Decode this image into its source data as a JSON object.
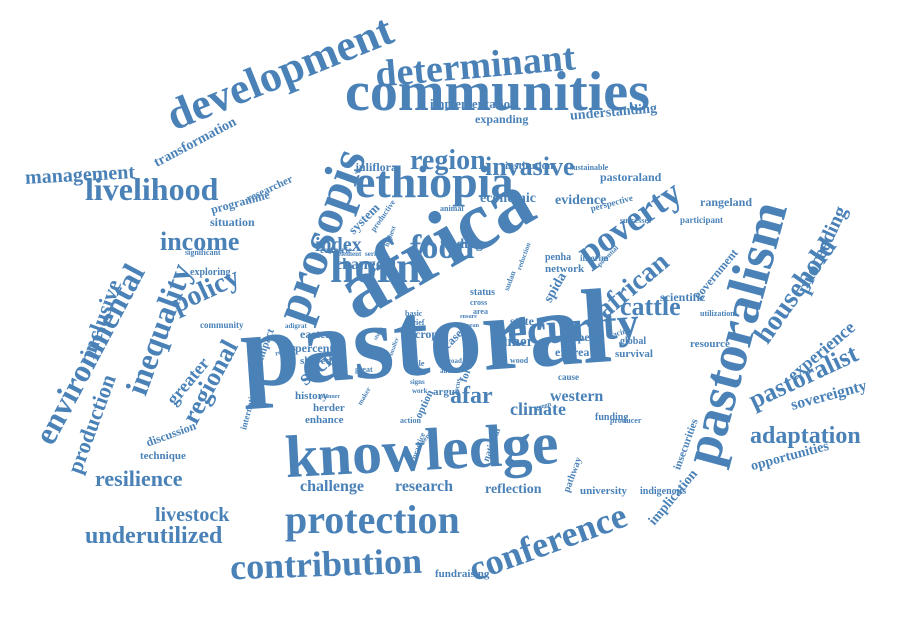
{
  "words": {
    "pastoral": "pastoral",
    "africa": "africa",
    "knowledge": "knowledge",
    "communities": "communities",
    "prosopis": "prosopis",
    "pastoralism": "pastoralism",
    "security": "security",
    "ethiopia": "ethiopia",
    "development": "development",
    "protection": "protection",
    "contribution": "contribution",
    "horn": "horn",
    "determinant": "determinant",
    "conference": "conference",
    "poverty": "poverty",
    "food": "food",
    "environmental": "environmental",
    "livelihood": "livelihood",
    "inequality": "inequality",
    "region": "region",
    "invasive": "invasive",
    "income": "income",
    "policy": "policy",
    "household": "household",
    "regional": "regional",
    "underutilized": "underutilized",
    "pastoralist": "pastoralist",
    "african": "african",
    "cattle": "cattle",
    "adaptation": "adaptation",
    "resilience": "resilience",
    "management": "management",
    "livestock": "livestock",
    "inclusive": "inclusive",
    "production": "production",
    "afar": "afar",
    "proceeding": "proceeding",
    "social": "social",
    "index": "index",
    "change": "change",
    "climate": "climate",
    "experience": "experience",
    "greater": "greater",
    "challenge": "challenge",
    "research": "research",
    "reflection": "reflection",
    "western": "western",
    "economic": "economic",
    "evidence": "evidence",
    "finding": "finding",
    "sovereignty": "sovereignty",
    "opportunities": "opportunities",
    "implication": "implication",
    "implementation": "implementation",
    "understanding": "understanding",
    "transformation": "transformation",
    "expanding": "expanding",
    "juliflora": "juliflora",
    "institution": "institution",
    "pastoraland": "pastoraland",
    "rangeland": "rangeland",
    "scientific": "scientific",
    "spida": "spida",
    "exploring": "exploring",
    "situation": "situation",
    "programme": "programme",
    "researcher": "researcher",
    "government": "government",
    "system": "system",
    "amer": "amer",
    "eritrea": "eritrea",
    "paper": "paper",
    "state": "state",
    "eastern": "eastern",
    "percent": "percent",
    "shared": "shared",
    "crop": "crop",
    "resource": "resource",
    "survival": "survival",
    "global": "global",
    "funding": "funding",
    "discussion": "discussion",
    "technique": "technique",
    "history": "history",
    "herder": "herder",
    "enhance": "enhance",
    "university": "university",
    "indigenous": "indigenous",
    "insecurities": "insecurities",
    "pathway": "pathway",
    "fundraising": "fundraising",
    "national": "national",
    "network": "network",
    "penha": "penha",
    "interim": "interim",
    "impact": "impact",
    "international": "international",
    "community": "community",
    "significant": "significant",
    "participant": "participant",
    "perspective": "perspective",
    "sustainable": "sustainable",
    "successes": "successes",
    "utilization": "utilization",
    "status": "status",
    "option": "option",
    "argue": "argue",
    "forest": "forest",
    "case": "case",
    "cause": "cause",
    "countrie": "countrie",
    "productive": "productive",
    "animal": "animal",
    "producer": "producer",
    "wood": "wood",
    "great": "great",
    "sudan": "sudan",
    "action": "action",
    "practice": "practice",
    "green": "green",
    "facing": "facing",
    "cross": "cross",
    "area": "area",
    "basic": "basic",
    "brief": "brief",
    "scale": "scale",
    "adds": "adds",
    "signs": "signs",
    "work": "work",
    "road": "road",
    "highest": "highest",
    "element": "element",
    "serious": "serious",
    "maker": "maker",
    "related": "related",
    "adigrat": "adigrat",
    "reduction": "reduction",
    "potential": "potential",
    "sense": "sense",
    "author": "author",
    "study": "study",
    "focus": "focus",
    "ensure": "ensure",
    "mean": "mean",
    "planner": "planner",
    "smaller": "smaller"
  },
  "colors": {
    "text": "#4a82b8",
    "background": "#ffffff"
  }
}
